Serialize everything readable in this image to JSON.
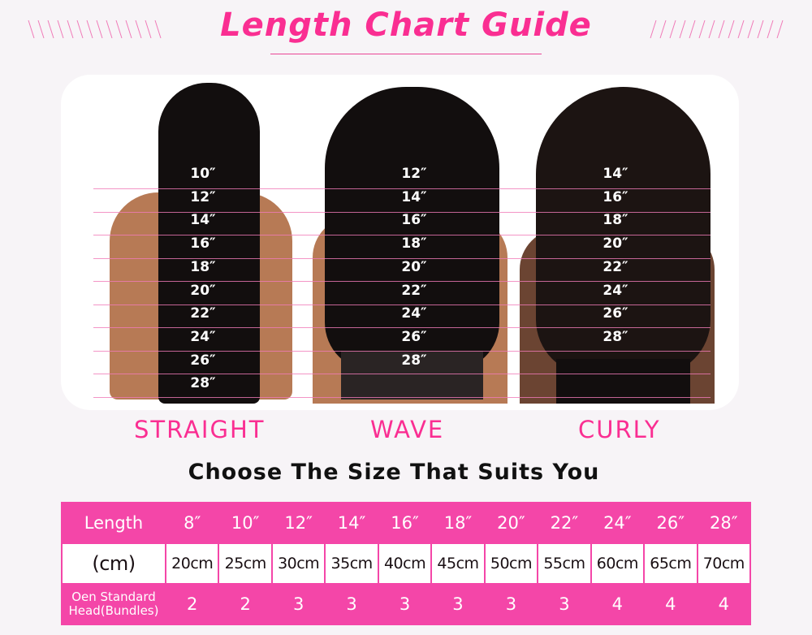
{
  "title": "Length Chart Guide",
  "colors": {
    "accent": "#fa2e92",
    "table": "#f446a8"
  },
  "styles": [
    {
      "name": "STRAIGHT",
      "lengths": [
        "10″",
        "12″",
        "14″",
        "16″",
        "18″",
        "20″",
        "22″",
        "24″",
        "26″",
        "28″"
      ]
    },
    {
      "name": "WAVE",
      "lengths": [
        "12″",
        "14″",
        "16″",
        "18″",
        "20″",
        "22″",
        "24″",
        "26″",
        "28″"
      ]
    },
    {
      "name": "CURLY",
      "lengths": [
        "14″",
        "16″",
        "18″",
        "20″",
        "22″",
        "24″",
        "26″",
        "28″"
      ]
    }
  ],
  "subtitle": "Choose The Size That Suits You",
  "table": {
    "rows": [
      {
        "header": "Length",
        "cells": [
          "8″",
          "10″",
          "12″",
          "14″",
          "16″",
          "18″",
          "20″",
          "22″",
          "24″",
          "26″",
          "28″"
        ]
      },
      {
        "header": "(cm)",
        "cells": [
          "20cm",
          "25cm",
          "30cm",
          "35cm",
          "40cm",
          "45cm",
          "50cm",
          "55cm",
          "60cm",
          "65cm",
          "70cm"
        ]
      },
      {
        "header": "Oen Standard Head(Bundles)",
        "cells": [
          "2",
          "2",
          "3",
          "3",
          "3",
          "3",
          "3",
          "3",
          "4",
          "4",
          "4"
        ]
      }
    ]
  }
}
